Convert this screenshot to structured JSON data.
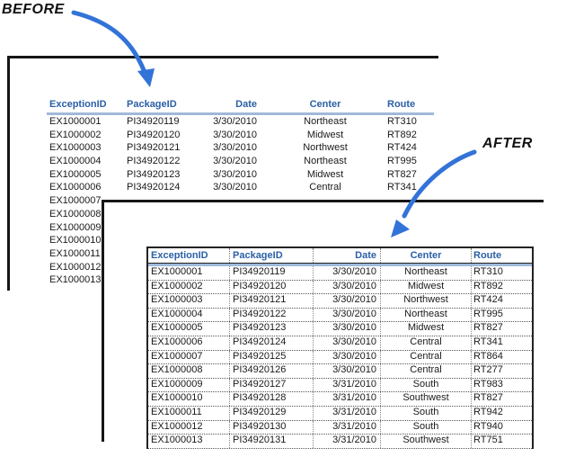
{
  "labels": {
    "before": "BEFORE",
    "after": "AFTER"
  },
  "colors": {
    "header_text": "#2b5fa6",
    "header_underline": "#9fb9da",
    "arrow": "#3273d8",
    "frame_border": "#161616"
  },
  "columns": [
    "ExceptionID",
    "PackageID",
    "Date",
    "Center",
    "Route"
  ],
  "before_table": {
    "headers": [
      "ExceptionID",
      "PackageID",
      "Date",
      "Center",
      "Route"
    ],
    "rows": [
      [
        "EX1000001",
        "PI34920119",
        "3/30/2010",
        "Northeast",
        "RT310"
      ],
      [
        "EX1000002",
        "PI34920120",
        "3/30/2010",
        "Midwest",
        "RT892"
      ],
      [
        "EX1000003",
        "PI34920121",
        "3/30/2010",
        "Northwest",
        "RT424"
      ],
      [
        "EX1000004",
        "PI34920122",
        "3/30/2010",
        "Northeast",
        "RT995"
      ],
      [
        "EX1000005",
        "PI34920123",
        "3/30/2010",
        "Midwest",
        "RT827"
      ],
      [
        "EX1000006",
        "PI34920124",
        "3/30/2010",
        "Central",
        "RT341"
      ],
      [
        "EX1000007",
        "",
        "",
        "",
        ""
      ],
      [
        "EX1000008",
        "",
        "",
        "",
        ""
      ],
      [
        "EX1000009",
        "",
        "",
        "",
        ""
      ],
      [
        "EX1000010",
        "",
        "",
        "",
        ""
      ],
      [
        "EX1000011",
        "",
        "",
        "",
        ""
      ],
      [
        "EX1000012",
        "",
        "",
        "",
        ""
      ],
      [
        "EX1000013",
        "",
        "",
        "",
        ""
      ]
    ]
  },
  "after_table": {
    "headers": [
      "ExceptionID",
      "PackageID",
      "Date",
      "Center",
      "Route"
    ],
    "rows": [
      [
        "EX1000001",
        "PI34920119",
        "3/30/2010",
        "Northeast",
        "RT310"
      ],
      [
        "EX1000002",
        "PI34920120",
        "3/30/2010",
        "Midwest",
        "RT892"
      ],
      [
        "EX1000003",
        "PI34920121",
        "3/30/2010",
        "Northwest",
        "RT424"
      ],
      [
        "EX1000004",
        "PI34920122",
        "3/30/2010",
        "Northeast",
        "RT995"
      ],
      [
        "EX1000005",
        "PI34920123",
        "3/30/2010",
        "Midwest",
        "RT827"
      ],
      [
        "EX1000006",
        "PI34920124",
        "3/30/2010",
        "Central",
        "RT341"
      ],
      [
        "EX1000007",
        "PI34920125",
        "3/30/2010",
        "Central",
        "RT864"
      ],
      [
        "EX1000008",
        "PI34920126",
        "3/30/2010",
        "Central",
        "RT277"
      ],
      [
        "EX1000009",
        "PI34920127",
        "3/31/2010",
        "South",
        "RT983"
      ],
      [
        "EX1000010",
        "PI34920128",
        "3/31/2010",
        "Southwest",
        "RT827"
      ],
      [
        "EX1000011",
        "PI34920129",
        "3/31/2010",
        "South",
        "RT942"
      ],
      [
        "EX1000012",
        "PI34920130",
        "3/31/2010",
        "South",
        "RT940"
      ],
      [
        "EX1000013",
        "PI34920131",
        "3/31/2010",
        "Southwest",
        "RT751"
      ]
    ]
  }
}
